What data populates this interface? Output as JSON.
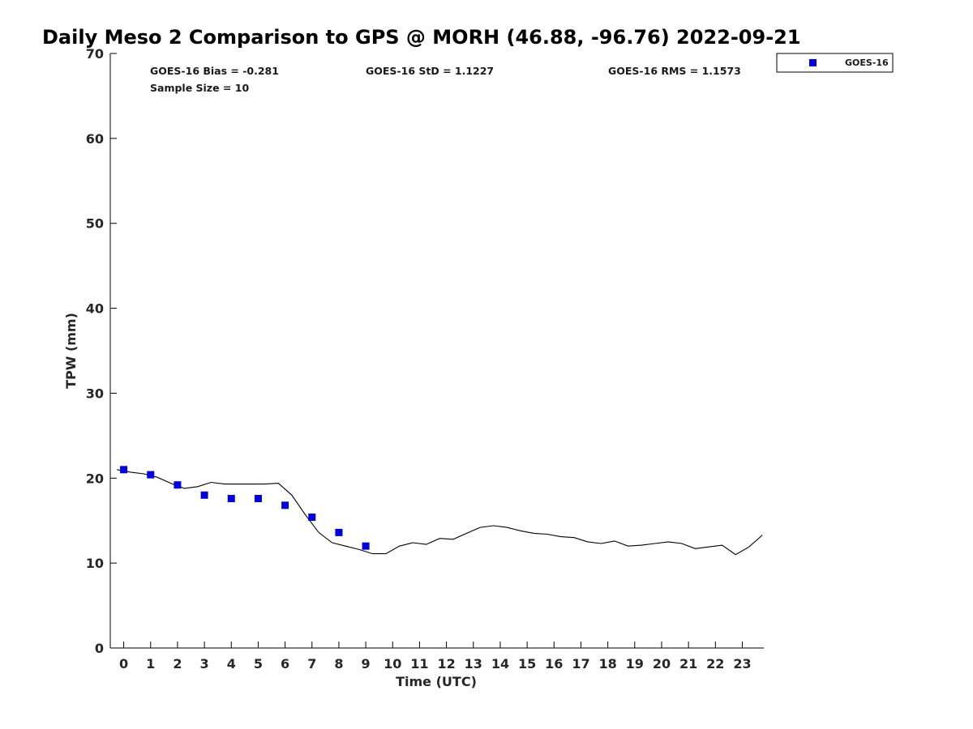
{
  "chart_data": {
    "type": "scatter",
    "title": "Daily Meso 2 Comparison to GPS @ MORH (46.88, -96.76) 2022-09-21",
    "xlabel": "Time (UTC)",
    "ylabel": "TPW (mm)",
    "xlim": [
      -0.5,
      23.8
    ],
    "ylim": [
      0,
      70
    ],
    "x_ticks": [
      "0",
      "1",
      "2",
      "3",
      "4",
      "5",
      "6",
      "7",
      "8",
      "9",
      "10",
      "11",
      "12",
      "13",
      "14",
      "15",
      "16",
      "17",
      "18",
      "19",
      "20",
      "21",
      "22",
      "23"
    ],
    "y_ticks": [
      "0",
      "10",
      "20",
      "30",
      "40",
      "50",
      "60",
      "70"
    ],
    "grid": false,
    "legend": {
      "position": "top-right",
      "entries": [
        "GOES-16"
      ]
    },
    "stats": {
      "bias": "GOES-16 Bias = -0.281",
      "std": "GOES-16 StD = 1.1227",
      "rms": "GOES-16 RMS = 1.1573",
      "sample": "Sample Size = 10"
    },
    "series": [
      {
        "name": "GOES-16",
        "kind": "scatter",
        "color": "#0000dd",
        "marker": "square",
        "x": [
          0,
          1,
          2,
          3,
          4,
          5,
          6,
          7,
          8,
          9
        ],
        "y": [
          21.0,
          20.4,
          19.2,
          18.0,
          17.6,
          17.6,
          16.8,
          15.4,
          13.6,
          12.0
        ]
      },
      {
        "kind": "line",
        "color": "#000000",
        "x": [
          -0.25,
          0.25,
          0.75,
          1.25,
          1.75,
          2.25,
          2.75,
          3.25,
          3.75,
          4.25,
          4.75,
          5.25,
          5.75,
          6.25,
          6.75,
          7.25,
          7.75,
          8.25,
          8.75,
          9.25,
          9.75,
          10.25,
          10.75,
          11.25,
          11.75,
          12.25,
          12.75,
          13.25,
          13.75,
          14.25,
          14.75,
          15.25,
          15.75,
          16.25,
          16.75,
          17.25,
          17.75,
          18.25,
          18.75,
          19.25,
          19.75,
          20.25,
          20.75,
          21.25,
          21.75,
          22.25,
          22.75,
          23.25,
          23.75
        ],
        "y": [
          21.0,
          20.7,
          20.5,
          20.1,
          19.4,
          18.8,
          19.0,
          19.5,
          19.3,
          19.3,
          19.3,
          19.3,
          19.4,
          18.0,
          15.7,
          13.6,
          12.4,
          12.0,
          11.6,
          11.1,
          11.1,
          12.0,
          12.4,
          12.2,
          12.9,
          12.8,
          13.5,
          14.2,
          14.4,
          14.2,
          13.8,
          13.5,
          13.4,
          13.1,
          13.0,
          12.5,
          12.3,
          12.6,
          12.0,
          12.1,
          12.3,
          12.5,
          12.3,
          11.7,
          11.9,
          12.1,
          11.0,
          11.9,
          13.3
        ]
      }
    ]
  }
}
